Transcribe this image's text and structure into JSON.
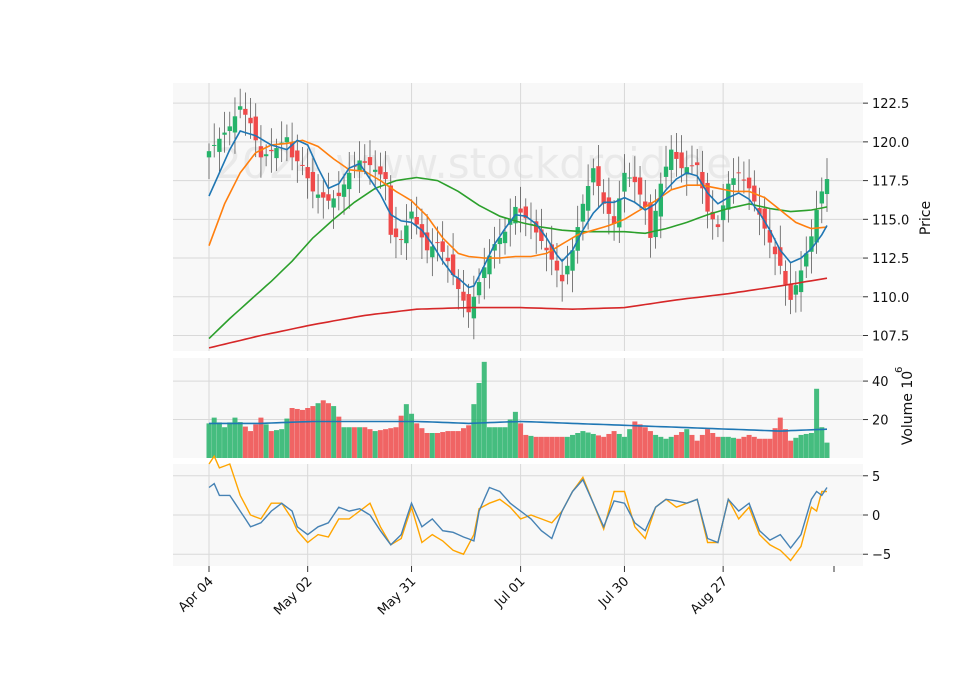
{
  "watermark": "2024 www.stockdroid.de",
  "chart_data": {
    "type": "candlestick",
    "x_tick_labels": [
      "Apr 04",
      "May 02",
      "May 31",
      "Jul 01",
      "Jul 30",
      "Aug 27"
    ],
    "x_tick_index": [
      0,
      19,
      39,
      60,
      80,
      99
    ],
    "n_bars": 120,
    "colors": {
      "up": "#26b36a",
      "down": "#ef4a4a",
      "sma_fast": "#1f77b4",
      "sma_mid": "#ff7f0e",
      "sma_slow": "#2ca02c",
      "sma_long": "#d62728",
      "osc_a": "#4682b4",
      "osc_b": "#ffa500",
      "grid": "#d9d9d9",
      "panel_bg": "#f8f8f8"
    },
    "panels": [
      {
        "name": "price",
        "ylabel": "Price",
        "ylim": [
          106.5,
          123.8
        ],
        "yticks": [
          107.5,
          110.0,
          112.5,
          115.0,
          117.5,
          120.0,
          122.5
        ],
        "ytick_labels": [
          "107.5",
          "110.0",
          "112.5",
          "115.0",
          "117.5",
          "120.0",
          "122.5"
        ]
      },
      {
        "name": "volume",
        "ylabel": "Volume  10^6",
        "ylim": [
          0,
          52
        ],
        "yticks": [
          20,
          40
        ],
        "ytick_labels": [
          "20",
          "40"
        ]
      },
      {
        "name": "oscillator",
        "ylabel": "",
        "ylim": [
          -6.5,
          6.5
        ],
        "yticks": [
          -5,
          0,
          5
        ],
        "ytick_labels": [
          "−5",
          "0",
          "5"
        ]
      }
    ],
    "close_anchors": [
      [
        0,
        119.4
      ],
      [
        4,
        121.0
      ],
      [
        6,
        122.3
      ],
      [
        8,
        121.2
      ],
      [
        10,
        119.0
      ],
      [
        13,
        119.6
      ],
      [
        15,
        120.3
      ],
      [
        16,
        119.0
      ],
      [
        18,
        118.5
      ],
      [
        20,
        116.8
      ],
      [
        23,
        116.2
      ],
      [
        25,
        116.5
      ],
      [
        27,
        118.0
      ],
      [
        29,
        118.8
      ],
      [
        31,
        118.5
      ],
      [
        34,
        117.6
      ],
      [
        35,
        114.0
      ],
      [
        37,
        113.7
      ],
      [
        39,
        115.5
      ],
      [
        42,
        113.0
      ],
      [
        44,
        113.5
      ],
      [
        46,
        112.3
      ],
      [
        48,
        110.5
      ],
      [
        50,
        109.0
      ],
      [
        51,
        110.0
      ],
      [
        53,
        111.9
      ],
      [
        55,
        113.4
      ],
      [
        57,
        114.2
      ],
      [
        59,
        115.8
      ],
      [
        62,
        114.7
      ],
      [
        64,
        113.6
      ],
      [
        66,
        112.4
      ],
      [
        68,
        111.0
      ],
      [
        70,
        113.0
      ],
      [
        72,
        116.0
      ],
      [
        74,
        118.3
      ],
      [
        76,
        116.0
      ],
      [
        78,
        114.7
      ],
      [
        80,
        118.0
      ],
      [
        82,
        117.4
      ],
      [
        84,
        115.8
      ],
      [
        85,
        113.8
      ],
      [
        87,
        117.3
      ],
      [
        89,
        119.5
      ],
      [
        91,
        118.3
      ],
      [
        94,
        118.5
      ],
      [
        96,
        115.5
      ],
      [
        98,
        114.5
      ],
      [
        100,
        117.3
      ],
      [
        102,
        118.0
      ],
      [
        104,
        117.0
      ],
      [
        106,
        115.3
      ],
      [
        108,
        113.5
      ],
      [
        110,
        112.0
      ],
      [
        111,
        110.8
      ],
      [
        112,
        109.8
      ],
      [
        114,
        111.7
      ],
      [
        116,
        113.9
      ],
      [
        117,
        115.6
      ],
      [
        118,
        116.8
      ],
      [
        119,
        117.6
      ]
    ],
    "volume_anchors": [
      [
        0,
        18
      ],
      [
        1,
        21
      ],
      [
        3,
        16
      ],
      [
        5,
        21
      ],
      [
        8,
        14
      ],
      [
        10,
        21
      ],
      [
        12,
        14
      ],
      [
        14,
        15
      ],
      [
        16,
        26
      ],
      [
        18,
        25
      ],
      [
        20,
        27
      ],
      [
        22,
        30
      ],
      [
        24,
        27
      ],
      [
        26,
        16
      ],
      [
        28,
        16
      ],
      [
        30,
        16
      ],
      [
        32,
        14
      ],
      [
        34,
        15
      ],
      [
        36,
        16
      ],
      [
        38,
        28
      ],
      [
        40,
        18
      ],
      [
        42,
        13
      ],
      [
        44,
        13
      ],
      [
        46,
        14
      ],
      [
        48,
        14
      ],
      [
        50,
        17
      ],
      [
        53,
        50
      ],
      [
        54,
        16
      ],
      [
        57,
        16
      ],
      [
        59,
        24
      ],
      [
        61,
        12
      ],
      [
        63,
        11
      ],
      [
        66,
        11
      ],
      [
        69,
        11
      ],
      [
        72,
        14
      ],
      [
        76,
        11
      ],
      [
        78,
        14
      ],
      [
        80,
        11
      ],
      [
        82,
        19
      ],
      [
        84,
        16
      ],
      [
        86,
        12
      ],
      [
        88,
        10
      ],
      [
        90,
        12
      ],
      [
        92,
        15
      ],
      [
        94,
        9
      ],
      [
        96,
        15
      ],
      [
        98,
        11
      ],
      [
        100,
        11
      ],
      [
        102,
        10
      ],
      [
        104,
        12
      ],
      [
        106,
        10
      ],
      [
        108,
        10
      ],
      [
        110,
        21
      ],
      [
        112,
        9
      ],
      [
        114,
        12
      ],
      [
        116,
        13
      ],
      [
        117,
        36
      ],
      [
        118,
        16
      ],
      [
        119,
        8
      ]
    ],
    "volume_ma_anchors": [
      [
        0,
        18
      ],
      [
        10,
        18
      ],
      [
        20,
        19
      ],
      [
        30,
        19
      ],
      [
        40,
        19
      ],
      [
        50,
        18
      ],
      [
        60,
        19
      ],
      [
        70,
        18
      ],
      [
        80,
        17
      ],
      [
        90,
        16
      ],
      [
        100,
        15
      ],
      [
        110,
        14
      ],
      [
        119,
        15
      ]
    ],
    "sma_fast_anchors": [
      [
        0,
        116.5
      ],
      [
        4,
        119.5
      ],
      [
        6,
        120.7
      ],
      [
        9,
        120.4
      ],
      [
        12,
        119.8
      ],
      [
        15,
        119.5
      ],
      [
        17,
        120.1
      ],
      [
        19,
        119.8
      ],
      [
        21,
        118.3
      ],
      [
        23,
        117.0
      ],
      [
        25,
        117.3
      ],
      [
        27,
        118.3
      ],
      [
        29,
        118.6
      ],
      [
        31,
        117.6
      ],
      [
        33,
        116.6
      ],
      [
        35,
        115.3
      ],
      [
        37,
        114.9
      ],
      [
        39,
        114.8
      ],
      [
        41,
        114.3
      ],
      [
        43,
        113.4
      ],
      [
        45,
        112.3
      ],
      [
        47,
        111.4
      ],
      [
        48,
        111.2
      ],
      [
        50,
        110.6
      ],
      [
        51,
        110.7
      ],
      [
        53,
        112.0
      ],
      [
        55,
        113.4
      ],
      [
        57,
        114.4
      ],
      [
        59,
        115.3
      ],
      [
        61,
        115.2
      ],
      [
        63,
        114.7
      ],
      [
        65,
        113.8
      ],
      [
        67,
        112.7
      ],
      [
        68,
        112.3
      ],
      [
        70,
        113.0
      ],
      [
        72,
        114.3
      ],
      [
        74,
        115.4
      ],
      [
        76,
        116.1
      ],
      [
        78,
        116.1
      ],
      [
        80,
        116.4
      ],
      [
        82,
        116.1
      ],
      [
        84,
        115.6
      ],
      [
        86,
        116.0
      ],
      [
        88,
        116.9
      ],
      [
        90,
        117.6
      ],
      [
        92,
        118.0
      ],
      [
        94,
        117.8
      ],
      [
        96,
        116.7
      ],
      [
        98,
        116.0
      ],
      [
        100,
        116.4
      ],
      [
        102,
        116.7
      ],
      [
        104,
        116.3
      ],
      [
        106,
        115.4
      ],
      [
        108,
        114.3
      ],
      [
        110,
        113.0
      ],
      [
        112,
        112.2
      ],
      [
        114,
        112.5
      ],
      [
        116,
        113.1
      ],
      [
        118,
        114.0
      ],
      [
        119,
        114.6
      ]
    ],
    "sma_mid_anchors": [
      [
        0,
        113.3
      ],
      [
        3,
        116.0
      ],
      [
        6,
        118.0
      ],
      [
        9,
        119.3
      ],
      [
        12,
        119.8
      ],
      [
        15,
        119.9
      ],
      [
        18,
        120.1
      ],
      [
        21,
        119.7
      ],
      [
        24,
        118.9
      ],
      [
        27,
        118.2
      ],
      [
        30,
        118.1
      ],
      [
        33,
        117.5
      ],
      [
        36,
        116.8
      ],
      [
        39,
        116.2
      ],
      [
        42,
        115.2
      ],
      [
        45,
        113.8
      ],
      [
        48,
        112.8
      ],
      [
        50,
        112.6
      ],
      [
        53,
        112.5
      ],
      [
        56,
        112.5
      ],
      [
        59,
        112.6
      ],
      [
        62,
        112.6
      ],
      [
        65,
        112.8
      ],
      [
        68,
        113.4
      ],
      [
        71,
        114.0
      ],
      [
        74,
        114.3
      ],
      [
        77,
        114.6
      ],
      [
        80,
        115.0
      ],
      [
        83,
        115.6
      ],
      [
        86,
        116.2
      ],
      [
        89,
        116.9
      ],
      [
        92,
        117.2
      ],
      [
        95,
        117.2
      ],
      [
        98,
        117.0
      ],
      [
        101,
        116.8
      ],
      [
        104,
        116.8
      ],
      [
        107,
        116.4
      ],
      [
        110,
        115.6
      ],
      [
        113,
        114.8
      ],
      [
        116,
        114.4
      ],
      [
        119,
        114.5
      ]
    ],
    "sma_slow_anchors": [
      [
        0,
        107.3
      ],
      [
        4,
        108.6
      ],
      [
        8,
        109.8
      ],
      [
        12,
        111.0
      ],
      [
        16,
        112.3
      ],
      [
        20,
        113.8
      ],
      [
        24,
        115.0
      ],
      [
        28,
        116.1
      ],
      [
        32,
        117.0
      ],
      [
        36,
        117.5
      ],
      [
        40,
        117.7
      ],
      [
        44,
        117.5
      ],
      [
        48,
        116.8
      ],
      [
        52,
        115.9
      ],
      [
        56,
        115.2
      ],
      [
        60,
        114.8
      ],
      [
        64,
        114.5
      ],
      [
        68,
        114.3
      ],
      [
        72,
        114.2
      ],
      [
        76,
        114.2
      ],
      [
        80,
        114.2
      ],
      [
        84,
        114.1
      ],
      [
        88,
        114.4
      ],
      [
        92,
        114.8
      ],
      [
        96,
        115.3
      ],
      [
        100,
        115.7
      ],
      [
        104,
        116.0
      ],
      [
        108,
        115.7
      ],
      [
        112,
        115.5
      ],
      [
        116,
        115.6
      ],
      [
        119,
        115.8
      ]
    ],
    "sma_long_anchors": [
      [
        0,
        106.7
      ],
      [
        10,
        107.5
      ],
      [
        20,
        108.2
      ],
      [
        30,
        108.8
      ],
      [
        40,
        109.2
      ],
      [
        50,
        109.3
      ],
      [
        60,
        109.3
      ],
      [
        70,
        109.2
      ],
      [
        80,
        109.3
      ],
      [
        90,
        109.8
      ],
      [
        100,
        110.2
      ],
      [
        110,
        110.7
      ],
      [
        119,
        111.2
      ]
    ],
    "osc_a_anchors": [
      [
        0,
        3.5
      ],
      [
        1,
        4.0
      ],
      [
        2,
        2.5
      ],
      [
        4,
        2.5
      ],
      [
        6,
        0.5
      ],
      [
        8,
        -1.5
      ],
      [
        10,
        -1.0
      ],
      [
        12,
        0.5
      ],
      [
        14,
        1.5
      ],
      [
        16,
        0.5
      ],
      [
        17,
        -1.5
      ],
      [
        19,
        -2.5
      ],
      [
        21,
        -1.5
      ],
      [
        23,
        -1.0
      ],
      [
        25,
        1.0
      ],
      [
        27,
        0.5
      ],
      [
        29,
        0.8
      ],
      [
        31,
        0.0
      ],
      [
        33,
        -2.0
      ],
      [
        35,
        -3.8
      ],
      [
        37,
        -2.5
      ],
      [
        39,
        1.5
      ],
      [
        41,
        -1.5
      ],
      [
        43,
        -0.5
      ],
      [
        45,
        -2.0
      ],
      [
        47,
        -2.2
      ],
      [
        49,
        -2.8
      ],
      [
        51,
        -3.3
      ],
      [
        52,
        0.5
      ],
      [
        54,
        3.5
      ],
      [
        56,
        3.0
      ],
      [
        58,
        1.5
      ],
      [
        60,
        0.5
      ],
      [
        62,
        -0.5
      ],
      [
        64,
        -2.0
      ],
      [
        66,
        -3.0
      ],
      [
        68,
        0.5
      ],
      [
        70,
        3.0
      ],
      [
        72,
        4.5
      ],
      [
        74,
        1.5
      ],
      [
        76,
        -1.5
      ],
      [
        78,
        1.8
      ],
      [
        80,
        1.5
      ],
      [
        82,
        -1.0
      ],
      [
        84,
        -2.0
      ],
      [
        86,
        1.0
      ],
      [
        88,
        2.0
      ],
      [
        90,
        1.8
      ],
      [
        92,
        1.5
      ],
      [
        94,
        2.0
      ],
      [
        96,
        -3.0
      ],
      [
        98,
        -3.5
      ],
      [
        100,
        2.0
      ],
      [
        102,
        0.5
      ],
      [
        104,
        1.5
      ],
      [
        106,
        -2.0
      ],
      [
        108,
        -3.2
      ],
      [
        110,
        -2.5
      ],
      [
        112,
        -4.2
      ],
      [
        114,
        -2.5
      ],
      [
        116,
        2.0
      ],
      [
        117,
        3.0
      ],
      [
        118,
        2.5
      ],
      [
        119,
        3.5
      ]
    ],
    "osc_b_anchors": [
      [
        0,
        6.5
      ],
      [
        1,
        7.5
      ],
      [
        2,
        6.0
      ],
      [
        4,
        6.5
      ],
      [
        6,
        2.5
      ],
      [
        8,
        0.0
      ],
      [
        10,
        -0.5
      ],
      [
        12,
        1.5
      ],
      [
        14,
        1.5
      ],
      [
        16,
        -0.5
      ],
      [
        17,
        -2.0
      ],
      [
        19,
        -3.5
      ],
      [
        21,
        -2.5
      ],
      [
        23,
        -2.8
      ],
      [
        25,
        -0.5
      ],
      [
        27,
        -0.5
      ],
      [
        29,
        0.5
      ],
      [
        31,
        1.5
      ],
      [
        33,
        -1.5
      ],
      [
        35,
        -3.8
      ],
      [
        37,
        -3.0
      ],
      [
        39,
        1.0
      ],
      [
        41,
        -3.5
      ],
      [
        43,
        -2.5
      ],
      [
        45,
        -3.3
      ],
      [
        47,
        -4.5
      ],
      [
        49,
        -5.0
      ],
      [
        51,
        -2.5
      ],
      [
        52,
        0.8
      ],
      [
        54,
        1.5
      ],
      [
        56,
        2.0
      ],
      [
        58,
        1.0
      ],
      [
        60,
        -0.5
      ],
      [
        62,
        0.0
      ],
      [
        64,
        -0.5
      ],
      [
        66,
        -1.0
      ],
      [
        68,
        0.5
      ],
      [
        70,
        3.0
      ],
      [
        72,
        4.8
      ],
      [
        74,
        1.5
      ],
      [
        76,
        -1.8
      ],
      [
        78,
        3.0
      ],
      [
        80,
        3.0
      ],
      [
        82,
        -1.5
      ],
      [
        84,
        -3.0
      ],
      [
        86,
        1.0
      ],
      [
        88,
        2.0
      ],
      [
        90,
        1.0
      ],
      [
        92,
        1.5
      ],
      [
        94,
        2.0
      ],
      [
        96,
        -3.5
      ],
      [
        98,
        -3.5
      ],
      [
        100,
        2.0
      ],
      [
        102,
        -0.5
      ],
      [
        104,
        1.0
      ],
      [
        106,
        -2.5
      ],
      [
        108,
        -3.8
      ],
      [
        110,
        -4.5
      ],
      [
        112,
        -5.8
      ],
      [
        114,
        -4.0
      ],
      [
        116,
        1.0
      ],
      [
        117,
        0.5
      ],
      [
        118,
        3.0
      ],
      [
        119,
        3.0
      ]
    ]
  }
}
